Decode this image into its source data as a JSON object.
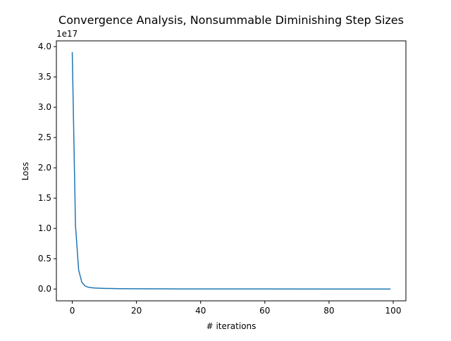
{
  "chart_data": {
    "type": "line",
    "title": "Convergence Analysis, Nonsummable Diminishing Step Sizes",
    "xlabel": "# iterations",
    "ylabel": "Loss",
    "y_offset_label": "1e17",
    "xlim": [
      -4.95,
      103.95
    ],
    "ylim": [
      -0.195,
      4.095
    ],
    "xticks": [
      0,
      20,
      40,
      60,
      80,
      100
    ],
    "xtick_labels": [
      "0",
      "20",
      "40",
      "60",
      "80",
      "100"
    ],
    "yticks": [
      0.0,
      0.5,
      1.0,
      1.5,
      2.0,
      2.5,
      3.0,
      3.5,
      4.0
    ],
    "ytick_labels": [
      "0.0",
      "0.5",
      "1.0",
      "1.5",
      "2.0",
      "2.5",
      "3.0",
      "3.5",
      "4.0"
    ],
    "grid": false,
    "color": "#1f77b4",
    "series": [
      {
        "x": [
          0,
          1,
          2,
          3,
          4,
          5,
          6,
          7,
          8,
          10,
          12,
          15,
          20,
          30,
          40,
          60,
          80,
          99
        ],
        "values": [
          3.9,
          1.05,
          0.31,
          0.11,
          0.05,
          0.03,
          0.022,
          0.017,
          0.014,
          0.01,
          0.008,
          0.006,
          0.004,
          0.002,
          0.001,
          0.0005,
          0.0003,
          0.0002
        ]
      }
    ]
  }
}
